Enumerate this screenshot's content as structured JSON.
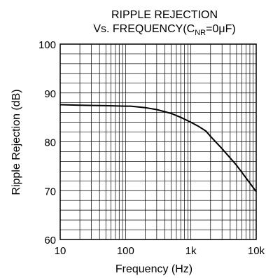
{
  "chart_data": {
    "type": "line",
    "title_line1": "RIPPLE REJECTION",
    "title_line2_prefix": "Vs. FREQUENCY(C",
    "title_line2_sub": "NR",
    "title_line2_suffix": "=0μF)",
    "xlabel": "Frequency (Hz)",
    "ylabel": "Ripple Rejection (dB)",
    "x_scale": "log",
    "xlim": [
      10,
      10000
    ],
    "ylim": [
      60,
      100
    ],
    "x_ticks": [
      10,
      100,
      1000,
      10000
    ],
    "x_tick_labels": [
      "10",
      "100",
      "1k",
      "10k"
    ],
    "y_ticks": [
      60,
      70,
      80,
      90,
      100
    ],
    "y_tick_labels": [
      "60",
      "70",
      "80",
      "90",
      "100"
    ],
    "grid": true,
    "line_color": "#000000",
    "series": [
      {
        "x": [
          10,
          20,
          50,
          100,
          120,
          200,
          300,
          500,
          700,
          1000,
          1300,
          1700,
          2000,
          3000,
          5000,
          7000,
          10000
        ],
        "y": [
          87.6,
          87.5,
          87.4,
          87.3,
          87.3,
          87.0,
          86.6,
          85.8,
          85.0,
          84.0,
          83.2,
          82.2,
          81.1,
          78.6,
          75.2,
          72.6,
          69.8
        ]
      }
    ]
  }
}
